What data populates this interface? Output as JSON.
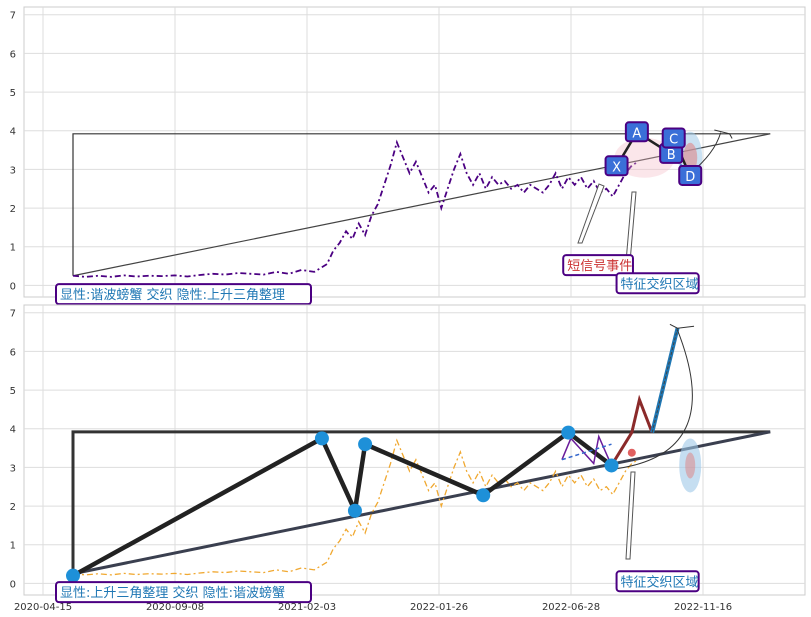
{
  "chart_data": [
    {
      "type": "line",
      "panel": "top",
      "ylim": [
        -0.3,
        7.2
      ],
      "yticks": [
        0,
        1,
        2,
        3,
        4,
        5,
        6,
        7
      ],
      "grid": true,
      "series": [
        {
          "values": [
            [
              0,
              0.25
            ],
            [
              10,
              0.22
            ],
            [
              20,
              0.25
            ],
            [
              30,
              0.22
            ],
            [
              40,
              0.26
            ],
            [
              50,
              0.23
            ],
            [
              60,
              0.25
            ],
            [
              70,
              0.24
            ],
            [
              80,
              0.26
            ],
            [
              90,
              0.23
            ],
            [
              100,
              0.27
            ],
            [
              110,
              0.3
            ],
            [
              120,
              0.28
            ],
            [
              130,
              0.32
            ],
            [
              140,
              0.3
            ],
            [
              150,
              0.28
            ],
            [
              160,
              0.35
            ],
            [
              170,
              0.3
            ],
            [
              180,
              0.4
            ],
            [
              190,
              0.35
            ],
            [
              200,
              0.55
            ],
            [
              205,
              0.9
            ],
            [
              210,
              1.1
            ],
            [
              215,
              1.4
            ],
            [
              220,
              1.2
            ],
            [
              225,
              1.6
            ],
            [
              230,
              1.3
            ],
            [
              235,
              1.8
            ],
            [
              240,
              2.1
            ],
            [
              245,
              2.6
            ],
            [
              250,
              3.1
            ],
            [
              255,
              3.7
            ],
            [
              260,
              3.3
            ],
            [
              265,
              2.9
            ],
            [
              270,
              3.2
            ],
            [
              275,
              2.8
            ],
            [
              280,
              2.4
            ],
            [
              285,
              2.6
            ],
            [
              290,
              2.0
            ],
            [
              295,
              2.5
            ],
            [
              300,
              3.0
            ],
            [
              305,
              3.4
            ],
            [
              310,
              2.9
            ],
            [
              315,
              2.6
            ],
            [
              320,
              2.9
            ],
            [
              325,
              2.5
            ],
            [
              330,
              2.8
            ],
            [
              335,
              2.6
            ],
            [
              340,
              2.7
            ],
            [
              345,
              2.5
            ],
            [
              350,
              2.6
            ],
            [
              355,
              2.4
            ],
            [
              360,
              2.6
            ],
            [
              365,
              2.5
            ],
            [
              370,
              2.4
            ],
            [
              375,
              2.6
            ],
            [
              380,
              2.9
            ],
            [
              385,
              2.5
            ],
            [
              390,
              2.8
            ],
            [
              395,
              2.6
            ],
            [
              400,
              2.8
            ],
            [
              405,
              2.5
            ],
            [
              410,
              2.7
            ],
            [
              415,
              2.4
            ],
            [
              420,
              2.5
            ],
            [
              425,
              2.3
            ],
            [
              430,
              2.6
            ],
            [
              435,
              2.9
            ],
            [
              440,
              3.1
            ],
            [
              445,
              3.2
            ]
          ],
          "color": "#4b0082",
          "style": "dashdot"
        }
      ],
      "support_line": [
        [
          0,
          0.25
        ],
        [
          549,
          3.92
        ]
      ],
      "resistance_line": [
        [
          0,
          0.25
        ],
        [
          0,
          3.92
        ],
        [
          549,
          3.92
        ]
      ],
      "pattern_points": [
        {
          "label": "A",
          "x": 444,
          "y": 3.96
        },
        {
          "label": "B",
          "x": 471,
          "y": 3.4
        },
        {
          "label": "C",
          "x": 473,
          "y": 3.8
        },
        {
          "label": "X",
          "x": 428,
          "y": 3.08
        },
        {
          "label": "D",
          "x": 486,
          "y": 2.83
        }
      ],
      "annotations": [
        {
          "text": "短信号事件",
          "x": 386,
          "y": 0.55,
          "color": "#cc3333"
        },
        {
          "text": "特征交织区域",
          "x": 428,
          "y": 0.08,
          "color": "#1f77b4"
        },
        {
          "text": "显性:谐波螃蟹 交织 隐性:上升三角整理",
          "x": 2,
          "y": -0.2,
          "color": "#1f77b4"
        }
      ]
    },
    {
      "type": "line",
      "panel": "bottom",
      "ylim": [
        -0.3,
        7.2
      ],
      "yticks": [
        0,
        1,
        2,
        3,
        4,
        5,
        6,
        7
      ],
      "grid": true,
      "xticks": [
        "2020-04-15",
        "2020-09-08",
        "2021-02-03",
        "2022-01-26",
        "2022-06-28",
        "2022-11-16"
      ],
      "series": [
        {
          "values": [
            [
              0,
              0.25
            ],
            [
              10,
              0.22
            ],
            [
              20,
              0.25
            ],
            [
              30,
              0.22
            ],
            [
              40,
              0.26
            ],
            [
              50,
              0.23
            ],
            [
              60,
              0.25
            ],
            [
              70,
              0.24
            ],
            [
              80,
              0.26
            ],
            [
              90,
              0.23
            ],
            [
              100,
              0.27
            ],
            [
              110,
              0.3
            ],
            [
              120,
              0.28
            ],
            [
              130,
              0.32
            ],
            [
              140,
              0.3
            ],
            [
              150,
              0.28
            ],
            [
              160,
              0.35
            ],
            [
              170,
              0.3
            ],
            [
              180,
              0.4
            ],
            [
              190,
              0.35
            ],
            [
              200,
              0.55
            ],
            [
              205,
              0.9
            ],
            [
              210,
              1.1
            ],
            [
              215,
              1.4
            ],
            [
              220,
              1.2
            ],
            [
              225,
              1.6
            ],
            [
              230,
              1.3
            ],
            [
              235,
              1.8
            ],
            [
              240,
              2.1
            ],
            [
              245,
              2.6
            ],
            [
              250,
              3.1
            ],
            [
              255,
              3.7
            ],
            [
              260,
              3.3
            ],
            [
              265,
              2.9
            ],
            [
              270,
              3.2
            ],
            [
              275,
              2.8
            ],
            [
              280,
              2.4
            ],
            [
              285,
              2.6
            ],
            [
              290,
              2.0
            ],
            [
              295,
              2.5
            ],
            [
              300,
              3.0
            ],
            [
              305,
              3.4
            ],
            [
              310,
              2.9
            ],
            [
              315,
              2.6
            ],
            [
              320,
              2.9
            ],
            [
              325,
              2.5
            ],
            [
              330,
              2.8
            ],
            [
              335,
              2.6
            ],
            [
              340,
              2.7
            ],
            [
              345,
              2.5
            ],
            [
              350,
              2.6
            ],
            [
              355,
              2.4
            ],
            [
              360,
              2.6
            ],
            [
              365,
              2.5
            ],
            [
              370,
              2.4
            ],
            [
              375,
              2.6
            ],
            [
              380,
              2.9
            ],
            [
              385,
              2.5
            ],
            [
              390,
              2.8
            ],
            [
              395,
              2.6
            ],
            [
              400,
              2.8
            ],
            [
              405,
              2.5
            ],
            [
              410,
              2.7
            ],
            [
              415,
              2.4
            ],
            [
              420,
              2.5
            ],
            [
              425,
              2.3
            ],
            [
              430,
              2.6
            ],
            [
              435,
              2.9
            ],
            [
              440,
              3.1
            ],
            [
              445,
              3.2
            ]
          ],
          "color": "#f0a830",
          "style": "dashdot"
        }
      ],
      "support_line": [
        [
          0,
          0.25
        ],
        [
          549,
          3.92
        ]
      ],
      "resistance_line": [
        [
          0,
          0.25
        ],
        [
          0,
          3.92
        ],
        [
          549,
          3.92
        ]
      ],
      "zigzag": [
        [
          0,
          0.2
        ],
        [
          196,
          3.75
        ],
        [
          222,
          1.88
        ],
        [
          230,
          3.6
        ],
        [
          323,
          2.28
        ],
        [
          390,
          3.9
        ],
        [
          424,
          3.05
        ]
      ],
      "projection": [
        [
          424,
          3.05
        ],
        [
          440,
          3.9
        ],
        [
          446,
          4.75
        ],
        [
          456,
          3.9
        ],
        [
          476,
          6.6
        ]
      ],
      "annotations": [
        {
          "text": "特征交织区域",
          "x": 428,
          "y": 0.08,
          "color": "#1f77b4"
        },
        {
          "text": "显性:上升三角整理 交织 隐性:谐波螃蟹",
          "x": 2,
          "y": -0.2,
          "color": "#1f77b4"
        }
      ]
    }
  ]
}
